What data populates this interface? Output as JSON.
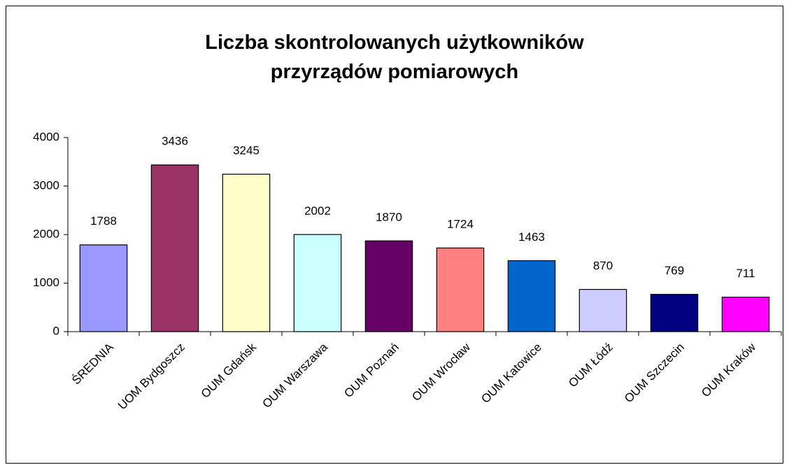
{
  "chart_data": {
    "type": "bar",
    "title": "Liczba skontrolowanych użytkowników przyrządów pomiarowych",
    "categories": [
      "ŚREDNIA",
      "UOM Bydgoszcz",
      "OUM Gdańsk",
      "OUM Warszawa",
      "OUM Poznań",
      "OUM Wrocław",
      "OUM Katowice",
      "OUM Łódź",
      "OUM Szczecin",
      "OUM Kraków"
    ],
    "values": [
      1788,
      3436,
      3245,
      2002,
      1870,
      1724,
      1463,
      870,
      769,
      711
    ],
    "colors": [
      "#9999ff",
      "#993366",
      "#ffffcc",
      "#ccffff",
      "#660066",
      "#ff8080",
      "#0066cc",
      "#ccccff",
      "#000080",
      "#ff00ff"
    ],
    "ylim": [
      0,
      4000
    ],
    "yticks": [
      0,
      1000,
      2000,
      3000,
      4000
    ],
    "grid": false
  }
}
